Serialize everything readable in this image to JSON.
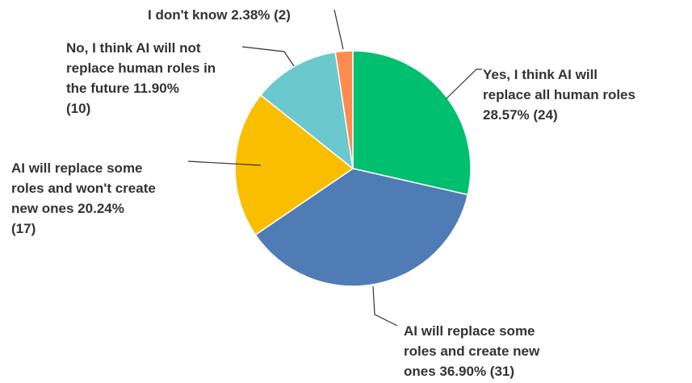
{
  "chart_data": {
    "type": "pie",
    "slices": [
      {
        "label_lines": [
          "Yes, I think AI will",
          "replace all human roles",
          "28.57% (24)"
        ],
        "percent": 28.57,
        "count": 24,
        "color": "#00bf6f"
      },
      {
        "label_lines": [
          "AI will replace some",
          "roles and create new",
          "ones 36.90% (31)"
        ],
        "percent": 36.9,
        "count": 31,
        "color": "#507cb6"
      },
      {
        "label_lines": [
          "AI will replace some",
          "roles and won't create",
          "new ones 20.24%",
          "(17)"
        ],
        "percent": 20.24,
        "count": 17,
        "color": "#f9be00"
      },
      {
        "label_lines": [
          "No, I think AI will not",
          "replace human roles in",
          "the future 11.90%",
          "(10)"
        ],
        "percent": 11.9,
        "count": 10,
        "color": "#6bc8cd"
      },
      {
        "label_lines": [
          "I don't know 2.38% (2)"
        ],
        "percent": 2.38,
        "count": 2,
        "color": "#ff8b4f"
      }
    ]
  }
}
